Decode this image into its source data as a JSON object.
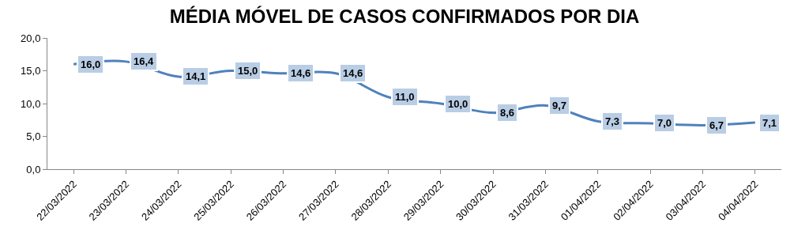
{
  "chart_data": {
    "type": "line",
    "title": "MÉDIA MÓVEL DE CASOS CONFIRMADOS POR DIA",
    "categories": [
      "22/03/2022",
      "23/03/2022",
      "24/03/2022",
      "25/03/2022",
      "26/03/2022",
      "27/03/2022",
      "28/03/2022",
      "29/03/2022",
      "30/03/2022",
      "31/03/2022",
      "01/04/2022",
      "02/04/2022",
      "03/04/2022",
      "04/04/2022"
    ],
    "series": [
      {
        "color": "#4f81bd",
        "values": [
          16.0,
          16.4,
          14.1,
          15.0,
          14.6,
          14.6,
          11.0,
          10.0,
          8.6,
          9.7,
          7.3,
          7.0,
          6.7,
          7.1
        ],
        "value_labels": [
          "16,0",
          "16,4",
          "14,1",
          "15,0",
          "14,6",
          "14,6",
          "11,0",
          "10,0",
          "8,6",
          "9,7",
          "7,3",
          "7,0",
          "6,7",
          "7,1"
        ]
      }
    ],
    "ylim": [
      0,
      20
    ],
    "yticks": [
      {
        "value": 0,
        "label": "0,0"
      },
      {
        "value": 5,
        "label": "5,0"
      },
      {
        "value": 10,
        "label": "10,0"
      },
      {
        "value": 15,
        "label": "15,0"
      },
      {
        "value": 20,
        "label": "20,0"
      }
    ],
    "marker": "none",
    "line_style": "solid"
  }
}
